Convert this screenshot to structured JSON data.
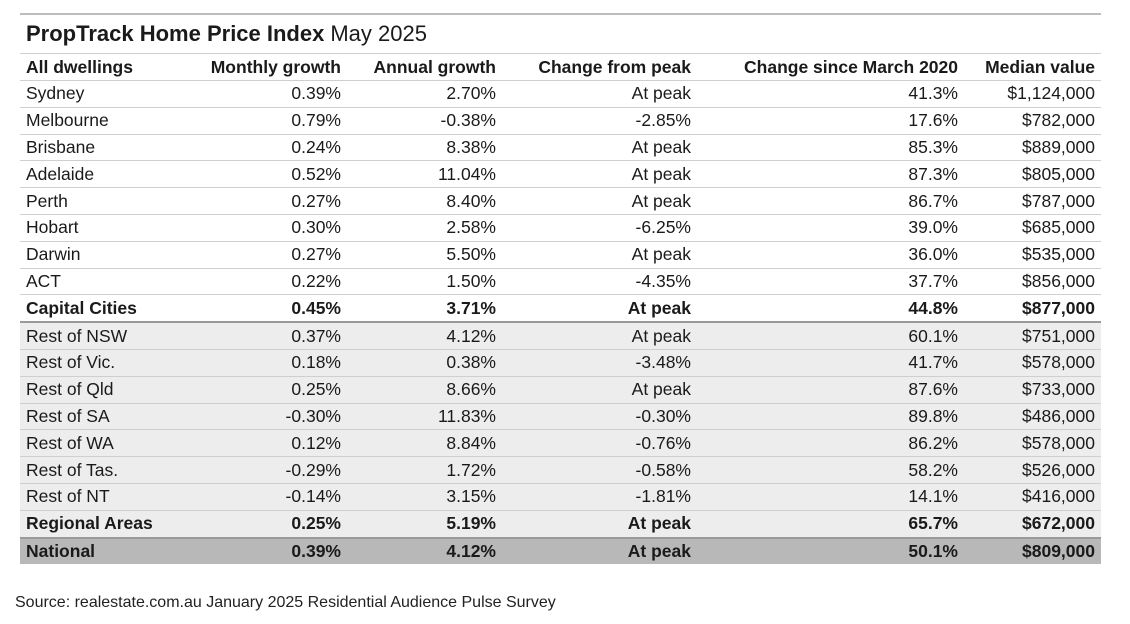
{
  "title": {
    "bold": "PropTrack Home Price Index",
    "rest": "May 2025"
  },
  "source": "Source: realestate.com.au January 2025 Residential Audience Pulse Survey",
  "chart_data": {
    "type": "table",
    "columns": [
      "All dwellings",
      "Monthly growth",
      "Annual growth",
      "Change from peak",
      "Change since March 2020",
      "Median value"
    ],
    "rows": [
      {
        "kind": "capital",
        "cells": [
          "Sydney",
          "0.39%",
          "2.70%",
          "At peak",
          "41.3%",
          "$1,124,000"
        ]
      },
      {
        "kind": "capital",
        "cells": [
          "Melbourne",
          "0.79%",
          "-0.38%",
          "-2.85%",
          "17.6%",
          "$782,000"
        ]
      },
      {
        "kind": "capital",
        "cells": [
          "Brisbane",
          "0.24%",
          "8.38%",
          "At peak",
          "85.3%",
          "$889,000"
        ]
      },
      {
        "kind": "capital",
        "cells": [
          "Adelaide",
          "0.52%",
          "11.04%",
          "At peak",
          "87.3%",
          "$805,000"
        ]
      },
      {
        "kind": "capital",
        "cells": [
          "Perth",
          "0.27%",
          "8.40%",
          "At peak",
          "86.7%",
          "$787,000"
        ]
      },
      {
        "kind": "capital",
        "cells": [
          "Hobart",
          "0.30%",
          "2.58%",
          "-6.25%",
          "39.0%",
          "$685,000"
        ]
      },
      {
        "kind": "capital",
        "cells": [
          "Darwin",
          "0.27%",
          "5.50%",
          "At peak",
          "36.0%",
          "$535,000"
        ]
      },
      {
        "kind": "capital",
        "cells": [
          "ACT",
          "0.22%",
          "1.50%",
          "-4.35%",
          "37.7%",
          "$856,000"
        ]
      },
      {
        "kind": "capital-total",
        "cells": [
          "Capital Cities",
          "0.45%",
          "3.71%",
          "At peak",
          "44.8%",
          "$877,000"
        ]
      },
      {
        "kind": "regional",
        "cells": [
          "Rest of NSW",
          "0.37%",
          "4.12%",
          "At peak",
          "60.1%",
          "$751,000"
        ]
      },
      {
        "kind": "regional",
        "cells": [
          "Rest of Vic.",
          "0.18%",
          "0.38%",
          "-3.48%",
          "41.7%",
          "$578,000"
        ]
      },
      {
        "kind": "regional",
        "cells": [
          "Rest of Qld",
          "0.25%",
          "8.66%",
          "At peak",
          "87.6%",
          "$733,000"
        ]
      },
      {
        "kind": "regional",
        "cells": [
          "Rest of SA",
          "-0.30%",
          "11.83%",
          "-0.30%",
          "89.8%",
          "$486,000"
        ]
      },
      {
        "kind": "regional",
        "cells": [
          "Rest of WA",
          "0.12%",
          "8.84%",
          "-0.76%",
          "86.2%",
          "$578,000"
        ]
      },
      {
        "kind": "regional",
        "cells": [
          "Rest of Tas.",
          "-0.29%",
          "1.72%",
          "-0.58%",
          "58.2%",
          "$526,000"
        ]
      },
      {
        "kind": "regional",
        "cells": [
          "Rest of NT",
          "-0.14%",
          "3.15%",
          "-1.81%",
          "14.1%",
          "$416,000"
        ]
      },
      {
        "kind": "regional-total",
        "cells": [
          "Regional Areas",
          "0.25%",
          "5.19%",
          "At peak",
          "65.7%",
          "$672,000"
        ]
      },
      {
        "kind": "national",
        "cells": [
          "National",
          "0.39%",
          "4.12%",
          "At peak",
          "50.1%",
          "$809,000"
        ]
      }
    ]
  }
}
